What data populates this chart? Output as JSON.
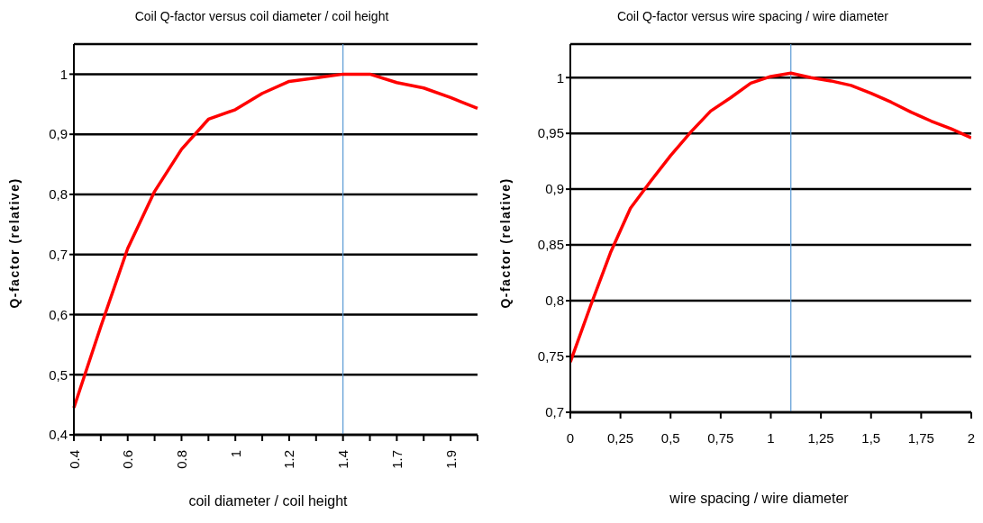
{
  "chart_data": [
    {
      "type": "line",
      "title": "Coil Q-factor versus coil diameter / coil height",
      "xlabel": "coil diameter / coil height",
      "ylabel": "Q-factor (relative)",
      "categories": [
        "0.4",
        null,
        "0.6",
        null,
        "0.8",
        null,
        "1",
        null,
        "1.2",
        null,
        "1.4",
        null,
        "1.7",
        null,
        "1.9",
        null
      ],
      "series": [
        {
          "color": "#ff0000",
          "values": [
            0.445,
            0.58,
            0.71,
            0.805,
            0.875,
            0.925,
            0.941,
            0.968,
            0.988,
            0.994,
            1.0,
            1.0,
            0.986,
            0.977,
            0.961,
            0.943
          ]
        }
      ],
      "ylim": [
        0.4,
        1.05
      ],
      "yticks": [
        {
          "value": 0.4,
          "label": "0,4"
        },
        {
          "value": 0.5,
          "label": "0,5"
        },
        {
          "value": 0.6,
          "label": "0,6"
        },
        {
          "value": 0.7,
          "label": "0,7"
        },
        {
          "value": 0.8,
          "label": "0,8"
        },
        {
          "value": 0.9,
          "label": "0,9"
        },
        1
      ],
      "ref_lines": [
        {
          "axis": "x",
          "value": "1.4",
          "color": "#5b9bd5"
        }
      ],
      "grid": "y",
      "legend": false,
      "marker": "none",
      "line_style": "solid"
    },
    {
      "type": "line",
      "title": "Coil Q-factor versus wire spacing / wire diameter",
      "xlabel": "wire spacing / wire diameter",
      "ylabel": "Q-factor (relative)",
      "x": [
        0,
        0.1,
        0.2,
        0.3,
        0.4,
        0.5,
        0.6,
        0.7,
        0.8,
        0.9,
        1.0,
        1.1,
        1.2,
        1.3,
        1.4,
        1.5,
        1.6,
        1.7,
        1.8,
        1.9,
        2.0
      ],
      "series": [
        {
          "color": "#ff0000",
          "values": [
            0.745,
            0.795,
            0.843,
            0.883,
            0.907,
            0.93,
            0.951,
            0.97,
            0.982,
            0.995,
            1.001,
            1.004,
            1.0,
            0.997,
            0.993,
            0.986,
            0.978,
            0.969,
            0.961,
            0.954,
            0.946
          ]
        }
      ],
      "xlim": [
        0,
        2
      ],
      "xticks": [
        0,
        {
          "value": 0.25,
          "label": "0,25"
        },
        {
          "value": 0.5,
          "label": "0,5"
        },
        {
          "value": 0.75,
          "label": "0,75"
        },
        1,
        {
          "value": 1.25,
          "label": "1,25"
        },
        {
          "value": 1.5,
          "label": "1,5"
        },
        {
          "value": 1.75,
          "label": "1,75"
        },
        2
      ],
      "ylim": [
        0.7,
        1.03
      ],
      "yticks": [
        {
          "value": 0.7,
          "label": "0,7"
        },
        {
          "value": 0.75,
          "label": "0,75"
        },
        {
          "value": 0.8,
          "label": "0,8"
        },
        {
          "value": 0.85,
          "label": "0,85"
        },
        {
          "value": 0.9,
          "label": "0,9"
        },
        {
          "value": 0.95,
          "label": "0,95"
        },
        1
      ],
      "ref_lines": [
        {
          "axis": "x",
          "value": 1.1,
          "color": "#5b9bd5"
        }
      ],
      "grid": "y",
      "legend": false,
      "marker": "none",
      "line_style": "solid"
    }
  ]
}
